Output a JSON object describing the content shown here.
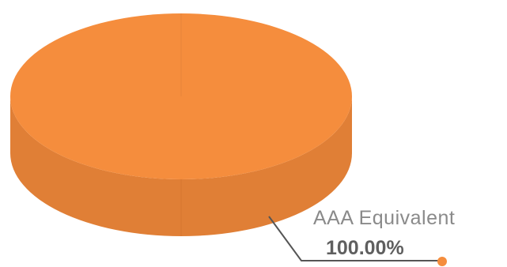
{
  "chart_data": {
    "type": "pie",
    "style": "3d",
    "title": "",
    "slices": [
      {
        "label": "AAA Equivalent",
        "value": 100.0,
        "value_label": "100.00%",
        "color": "#F58D3D"
      }
    ],
    "colors": {
      "top": "#F58D3D",
      "side": "#E07F36",
      "leader_line": "#555555",
      "marker": "#F58D3D"
    }
  }
}
